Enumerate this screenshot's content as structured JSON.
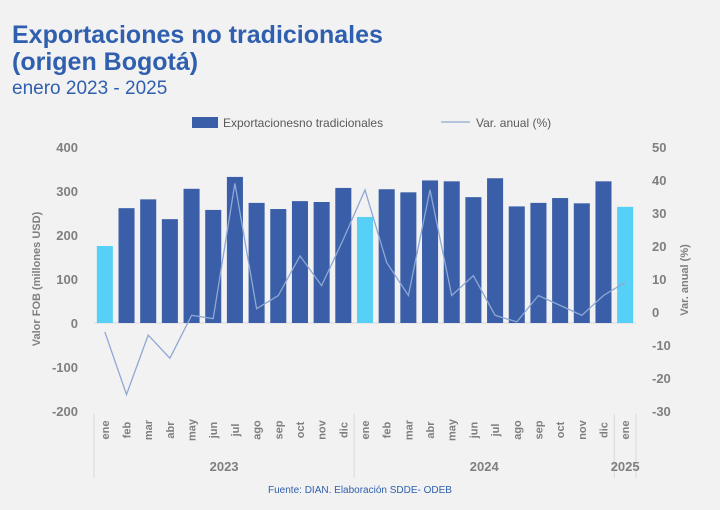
{
  "header": {
    "title_line1": "Exportaciones no tradicionales",
    "title_line2": "(origen Bogotá)",
    "subtitle": "enero 2023 - 2025"
  },
  "footer": {
    "source": "Fuente: DIAN. Elaboración SDDE- ODEB"
  },
  "colors": {
    "bar_default": "#3a5fa8",
    "bar_highlight": "#56d0f6",
    "line": "#8fa8d4",
    "axis_text": "#7f7f7f",
    "grid": "#d9d9d9"
  },
  "chart_data": {
    "type": "bar",
    "legend": {
      "placement": "top",
      "bar_label": "Exportacionesno tradicionales",
      "line_label": "Var. anual (%)"
    },
    "ylabel": "Valor FOB (millones USD)",
    "y2label": "Var. anual (%)",
    "ylim": [
      -200,
      400
    ],
    "yticks": [
      -200,
      -100,
      0,
      100,
      200,
      300,
      400
    ],
    "y2lim": [
      -30,
      50
    ],
    "y2ticks": [
      -30,
      -20,
      -10,
      0,
      10,
      20,
      30,
      40,
      50
    ],
    "categories": [
      "ene",
      "feb",
      "mar",
      "abr",
      "may",
      "jun",
      "jul",
      "ago",
      "sep",
      "oct",
      "nov",
      "dic",
      "ene",
      "feb",
      "mar",
      "abr",
      "may",
      "jun",
      "jul",
      "ago",
      "sep",
      "oct",
      "nov",
      "dic",
      "ene"
    ],
    "years": [
      {
        "label": "2023",
        "start": 0,
        "end": 11
      },
      {
        "label": "2024",
        "start": 12,
        "end": 23
      },
      {
        "label": "2025",
        "start": 24,
        "end": 24
      }
    ],
    "highlight_indices": [
      0,
      12,
      24
    ],
    "series": [
      {
        "name": "Exportacionesno tradicionales",
        "type": "bar",
        "values": [
          175,
          261,
          281,
          236,
          305,
          257,
          332,
          273,
          259,
          277,
          275,
          307,
          241,
          304,
          297,
          324,
          322,
          286,
          329,
          265,
          273,
          284,
          272,
          322,
          264
        ]
      },
      {
        "name": "Var. anual (%)",
        "type": "line",
        "axis": "secondary",
        "values": [
          -6,
          -25,
          -7,
          -14,
          -1,
          -2,
          39,
          1,
          5,
          17,
          8,
          22,
          37,
          15,
          5,
          37,
          5,
          11,
          -1,
          -3,
          5,
          2,
          -1,
          5,
          9
        ]
      }
    ]
  }
}
